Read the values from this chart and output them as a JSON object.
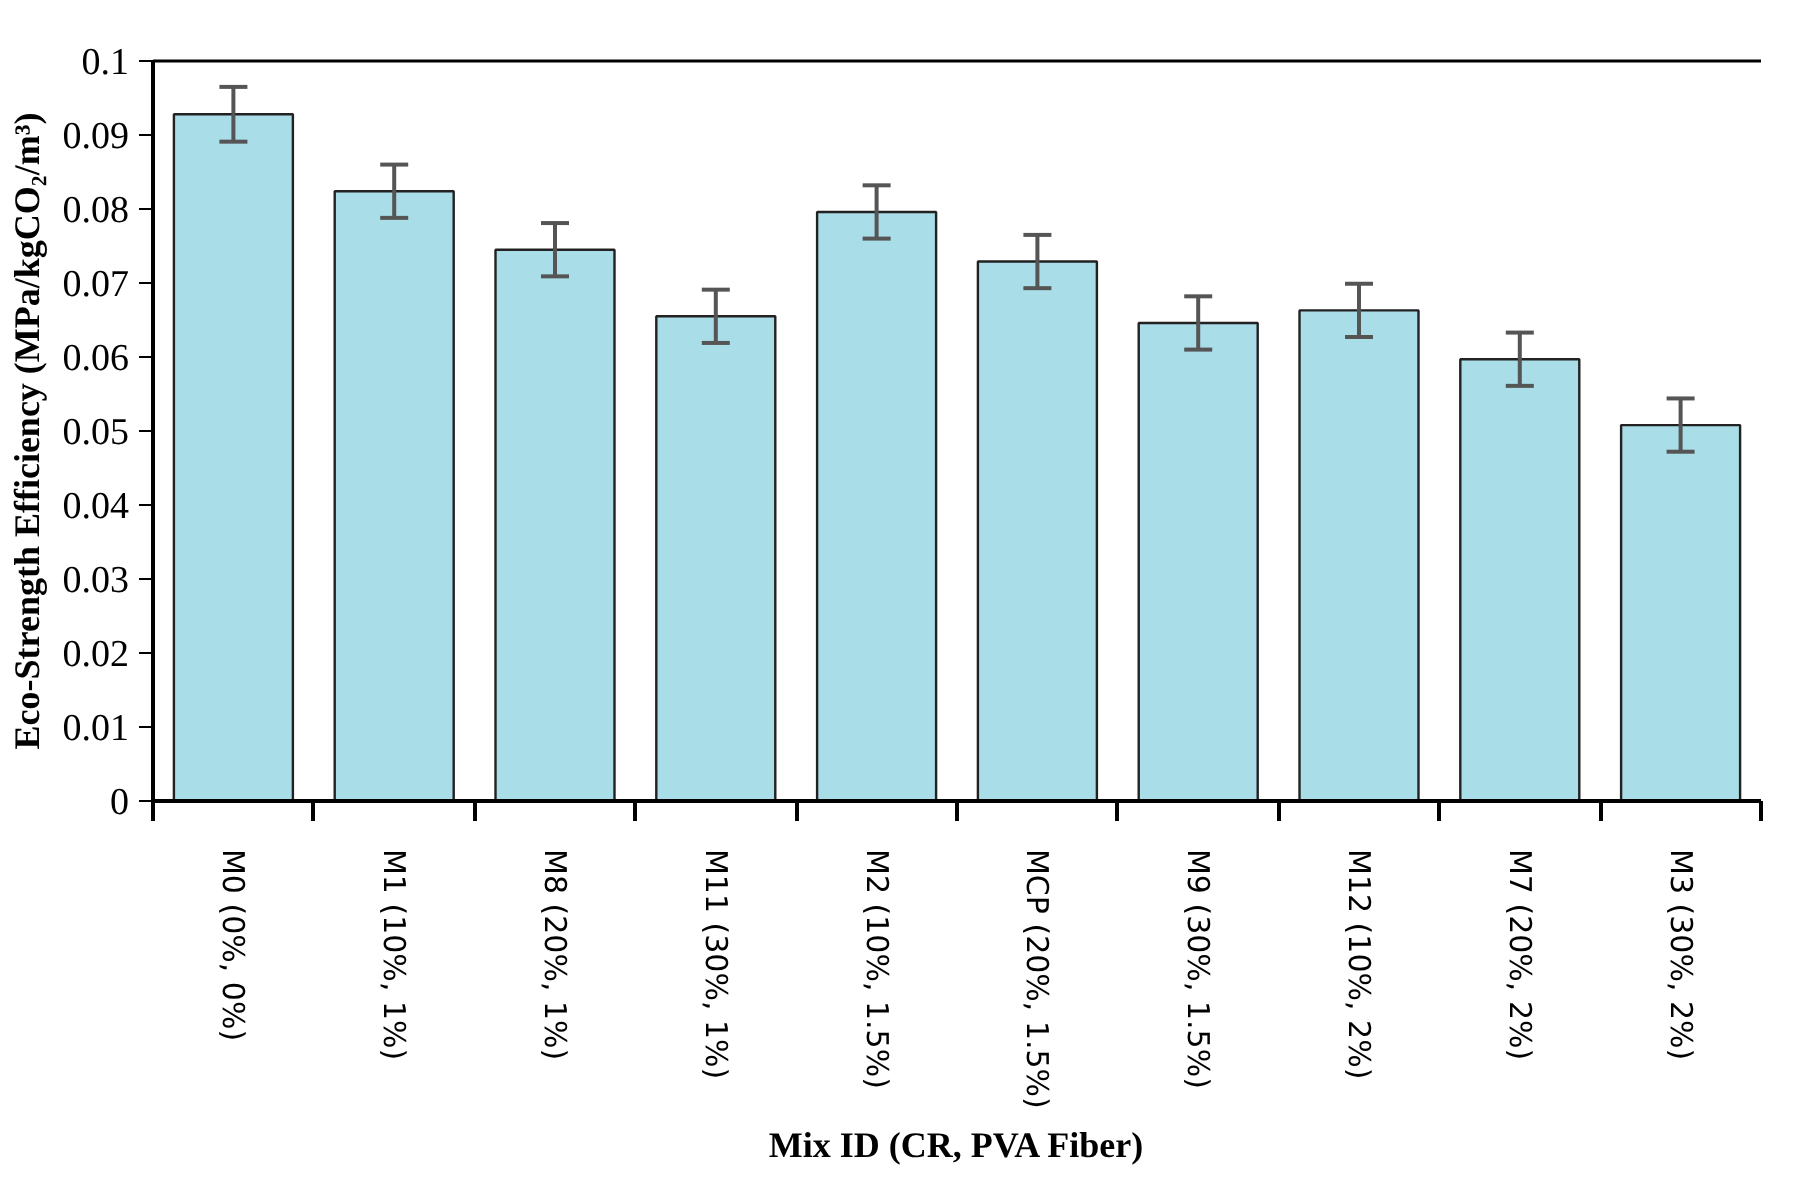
{
  "chart_data": {
    "type": "bar",
    "xlabel": "Mix ID (CR, PVA Fiber)",
    "ylabel": "Eco-Strength Efficiency (MPa/kgCO₂/m³)",
    "categories": [
      "M0 (0%, 0%)",
      "M1 (10%, 1%)",
      "M8 (20%, 1%)",
      "M11 (30%, 1%)",
      "M2 (10%, 1.5%)",
      "MCP (20%, 1.5%)",
      "M9 (30%, 1.5%)",
      "M12 (10%, 2%)",
      "M7 (20%, 2%)",
      "M3 (30%, 2%)"
    ],
    "values": [
      0.0928,
      0.0824,
      0.0745,
      0.0655,
      0.0796,
      0.0729,
      0.0646,
      0.0663,
      0.0597,
      0.0508
    ],
    "errors": [
      0.0037,
      0.0036,
      0.0036,
      0.0036,
      0.0036,
      0.0036,
      0.0036,
      0.0036,
      0.0036,
      0.0036
    ],
    "color": "#a9dde8",
    "ylim": [
      0,
      0.1
    ],
    "yticks": [
      0,
      0.01,
      0.02,
      0.03,
      0.04,
      0.05,
      0.06,
      0.07,
      0.08,
      0.09,
      0.1
    ],
    "grid": false
  }
}
